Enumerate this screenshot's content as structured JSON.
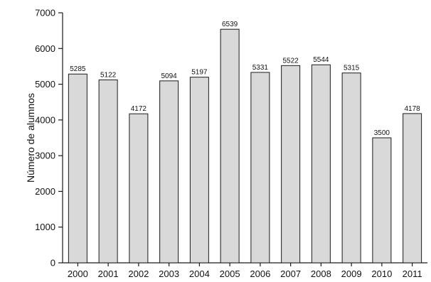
{
  "chart_data": {
    "type": "bar",
    "title": "",
    "xlabel": "",
    "ylabel": "Número de alumnos",
    "categories": [
      "2000",
      "2001",
      "2002",
      "2003",
      "2004",
      "2005",
      "2006",
      "2007",
      "2008",
      "2009",
      "2010",
      "2011"
    ],
    "values": [
      5285,
      5122,
      4172,
      5094,
      5197,
      6539,
      5331,
      5522,
      5544,
      5315,
      3500,
      4178
    ],
    "ylim": [
      0,
      7000
    ],
    "yticks": [
      0,
      1000,
      2000,
      3000,
      4000,
      5000,
      6000,
      7000
    ],
    "grid": false,
    "legend": "none",
    "bar_color": "#d9d9d9",
    "bar_edge_color": "#1a1a1a",
    "axis_color": "#1a1a1a"
  }
}
